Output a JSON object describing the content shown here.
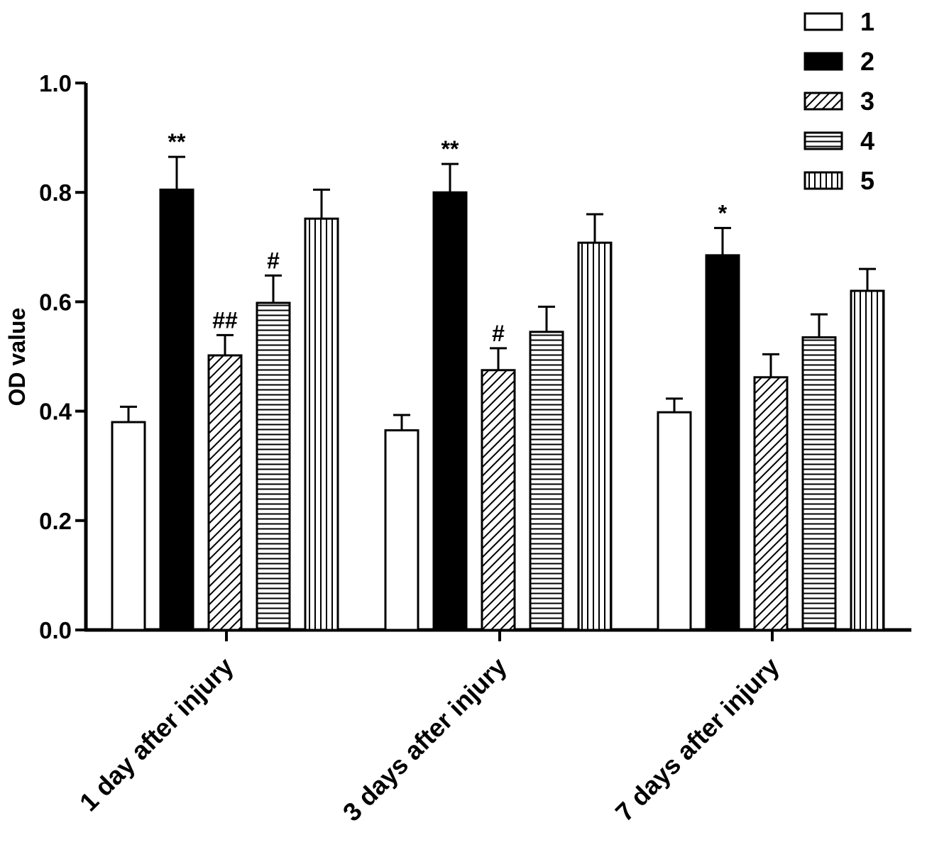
{
  "chart_data": {
    "type": "bar",
    "title": "",
    "xlabel": "",
    "ylabel": "OD value",
    "ylim": [
      0,
      1.0
    ],
    "yticks": [
      "0.0",
      "0.2",
      "0.4",
      "0.6",
      "0.8",
      "1.0"
    ],
    "ytick_values": [
      0,
      0.2,
      0.4,
      0.6,
      0.8,
      1.0
    ],
    "categories": [
      "1 day after injury",
      "3 days after injury",
      "7 days after injury"
    ],
    "legend_position": "top-right",
    "series": [
      {
        "name": "1",
        "pattern": "empty",
        "values": [
          0.38,
          0.365,
          0.398
        ],
        "errors": [
          0.028,
          0.028,
          0.025
        ],
        "annotations": [
          "",
          "",
          ""
        ]
      },
      {
        "name": "2",
        "pattern": "solid",
        "values": [
          0.805,
          0.8,
          0.685
        ],
        "errors": [
          0.06,
          0.052,
          0.05
        ],
        "annotations": [
          "**",
          "**",
          "*"
        ]
      },
      {
        "name": "3",
        "pattern": "diagonal",
        "values": [
          0.502,
          0.475,
          0.462
        ],
        "errors": [
          0.037,
          0.04,
          0.042
        ],
        "annotations": [
          "##",
          "#",
          ""
        ]
      },
      {
        "name": "4",
        "pattern": "horizontal",
        "values": [
          0.598,
          0.545,
          0.535
        ],
        "errors": [
          0.05,
          0.046,
          0.042
        ],
        "annotations": [
          "#",
          "",
          ""
        ]
      },
      {
        "name": "5",
        "pattern": "vertical",
        "values": [
          0.752,
          0.708,
          0.62
        ],
        "errors": [
          0.053,
          0.052,
          0.04
        ],
        "annotations": [
          "",
          "",
          ""
        ]
      }
    ]
  }
}
